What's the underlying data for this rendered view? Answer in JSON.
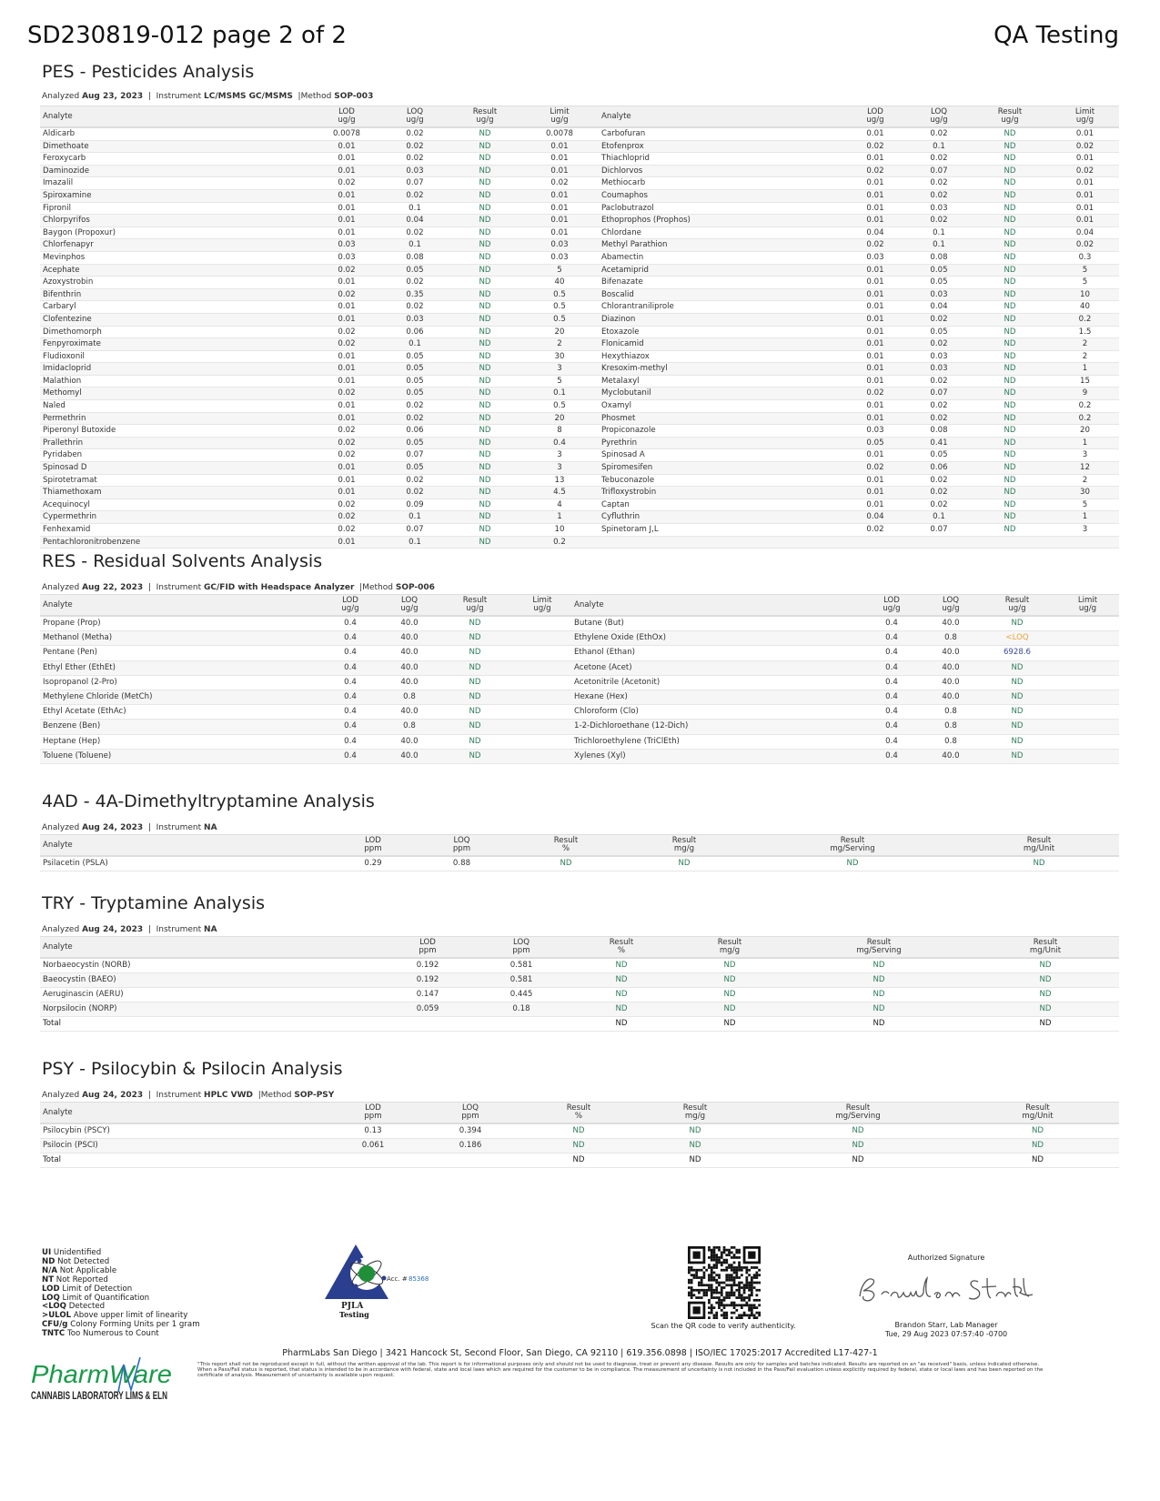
{
  "header": {
    "title": "SD230819-012 page 2 of 2",
    "right": "QA Testing"
  },
  "colors": {
    "nd": "#2e7d5b",
    "loq": "#e8a33a",
    "value": "#3b4a9a",
    "accreditation_blue": "#2a3f8f"
  },
  "pes": {
    "title": "PES - Pesticides Analysis",
    "analyzed_label": "Analyzed",
    "date": "Aug 23, 2023",
    "instrument_label": "Instrument",
    "instrument": "LC/MSMS GC/MSMS",
    "method_label": "Method",
    "method": "SOP-003",
    "headers": [
      "Analyte",
      "LOD\nug/g",
      "LOQ\nug/g",
      "Result\nug/g",
      "Limit\nug/g",
      "Analyte",
      "LOD\nug/g",
      "LOQ\nug/g",
      "Result\nug/g",
      "Limit\nug/g"
    ],
    "rows": [
      [
        "Aldicarb",
        "0.0078",
        "0.02",
        "ND",
        "0.0078",
        "Carbofuran",
        "0.01",
        "0.02",
        "ND",
        "0.01"
      ],
      [
        "Dimethoate",
        "0.01",
        "0.02",
        "ND",
        "0.01",
        "Etofenprox",
        "0.02",
        "0.1",
        "ND",
        "0.02"
      ],
      [
        "Feroxycarb",
        "0.01",
        "0.02",
        "ND",
        "0.01",
        "Thiachloprid",
        "0.01",
        "0.02",
        "ND",
        "0.01"
      ],
      [
        "Daminozide",
        "0.01",
        "0.03",
        "ND",
        "0.01",
        "Dichlorvos",
        "0.02",
        "0.07",
        "ND",
        "0.02"
      ],
      [
        "Imazalil",
        "0.02",
        "0.07",
        "ND",
        "0.02",
        "Methiocarb",
        "0.01",
        "0.02",
        "ND",
        "0.01"
      ],
      [
        "Spiroxamine",
        "0.01",
        "0.02",
        "ND",
        "0.01",
        "Coumaphos",
        "0.01",
        "0.02",
        "ND",
        "0.01"
      ],
      [
        "Fipronil",
        "0.01",
        "0.1",
        "ND",
        "0.01",
        "Paclobutrazol",
        "0.01",
        "0.03",
        "ND",
        "0.01"
      ],
      [
        "Chlorpyrifos",
        "0.01",
        "0.04",
        "ND",
        "0.01",
        "Ethoprophos (Prophos)",
        "0.01",
        "0.02",
        "ND",
        "0.01"
      ],
      [
        "Baygon (Propoxur)",
        "0.01",
        "0.02",
        "ND",
        "0.01",
        "Chlordane",
        "0.04",
        "0.1",
        "ND",
        "0.04"
      ],
      [
        "Chlorfenapyr",
        "0.03",
        "0.1",
        "ND",
        "0.03",
        "Methyl Parathion",
        "0.02",
        "0.1",
        "ND",
        "0.02"
      ],
      [
        "Mevinphos",
        "0.03",
        "0.08",
        "ND",
        "0.03",
        "Abamectin",
        "0.03",
        "0.08",
        "ND",
        "0.3"
      ],
      [
        "Acephate",
        "0.02",
        "0.05",
        "ND",
        "5",
        "Acetamiprid",
        "0.01",
        "0.05",
        "ND",
        "5"
      ],
      [
        "Azoxystrobin",
        "0.01",
        "0.02",
        "ND",
        "40",
        "Bifenazate",
        "0.01",
        "0.05",
        "ND",
        "5"
      ],
      [
        "Bifenthrin",
        "0.02",
        "0.35",
        "ND",
        "0.5",
        "Boscalid",
        "0.01",
        "0.03",
        "ND",
        "10"
      ],
      [
        "Carbaryl",
        "0.01",
        "0.02",
        "ND",
        "0.5",
        "Chlorantraniliprole",
        "0.01",
        "0.04",
        "ND",
        "40"
      ],
      [
        "Clofentezine",
        "0.01",
        "0.03",
        "ND",
        "0.5",
        "Diazinon",
        "0.01",
        "0.02",
        "ND",
        "0.2"
      ],
      [
        "Dimethomorph",
        "0.02",
        "0.06",
        "ND",
        "20",
        "Etoxazole",
        "0.01",
        "0.05",
        "ND",
        "1.5"
      ],
      [
        "Fenpyroximate",
        "0.02",
        "0.1",
        "ND",
        "2",
        "Flonicamid",
        "0.01",
        "0.02",
        "ND",
        "2"
      ],
      [
        "Fludioxonil",
        "0.01",
        "0.05",
        "ND",
        "30",
        "Hexythiazox",
        "0.01",
        "0.03",
        "ND",
        "2"
      ],
      [
        "Imidacloprid",
        "0.01",
        "0.05",
        "ND",
        "3",
        "Kresoxim-methyl",
        "0.01",
        "0.03",
        "ND",
        "1"
      ],
      [
        "Malathion",
        "0.01",
        "0.05",
        "ND",
        "5",
        "Metalaxyl",
        "0.01",
        "0.02",
        "ND",
        "15"
      ],
      [
        "Methomyl",
        "0.02",
        "0.05",
        "ND",
        "0.1",
        "Myclobutanil",
        "0.02",
        "0.07",
        "ND",
        "9"
      ],
      [
        "Naled",
        "0.01",
        "0.02",
        "ND",
        "0.5",
        "Oxamyl",
        "0.01",
        "0.02",
        "ND",
        "0.2"
      ],
      [
        "Permethrin",
        "0.01",
        "0.02",
        "ND",
        "20",
        "Phosmet",
        "0.01",
        "0.02",
        "ND",
        "0.2"
      ],
      [
        "Piperonyl Butoxide",
        "0.02",
        "0.06",
        "ND",
        "8",
        "Propiconazole",
        "0.03",
        "0.08",
        "ND",
        "20"
      ],
      [
        "Prallethrin",
        "0.02",
        "0.05",
        "ND",
        "0.4",
        "Pyrethrin",
        "0.05",
        "0.41",
        "ND",
        "1"
      ],
      [
        "Pyridaben",
        "0.02",
        "0.07",
        "ND",
        "3",
        "Spinosad A",
        "0.01",
        "0.05",
        "ND",
        "3"
      ],
      [
        "Spinosad D",
        "0.01",
        "0.05",
        "ND",
        "3",
        "Spiromesifen",
        "0.02",
        "0.06",
        "ND",
        "12"
      ],
      [
        "Spirotetramat",
        "0.01",
        "0.02",
        "ND",
        "13",
        "Tebuconazole",
        "0.01",
        "0.02",
        "ND",
        "2"
      ],
      [
        "Thiamethoxam",
        "0.01",
        "0.02",
        "ND",
        "4.5",
        "Trifloxystrobin",
        "0.01",
        "0.02",
        "ND",
        "30"
      ],
      [
        "Acequinocyl",
        "0.02",
        "0.09",
        "ND",
        "4",
        "Captan",
        "0.01",
        "0.02",
        "ND",
        "5"
      ],
      [
        "Cypermethrin",
        "0.02",
        "0.1",
        "ND",
        "1",
        "Cyfluthrin",
        "0.04",
        "0.1",
        "ND",
        "1"
      ],
      [
        "Fenhexamid",
        "0.02",
        "0.07",
        "ND",
        "10",
        "Spinetoram J,L",
        "0.02",
        "0.07",
        "ND",
        "3"
      ],
      [
        "Pentachloronitrobenzene",
        "0.01",
        "0.1",
        "ND",
        "0.2",
        "",
        "",
        "",
        "",
        ""
      ]
    ]
  },
  "res": {
    "title": "RES - Residual Solvents Analysis",
    "analyzed_label": "Analyzed",
    "date": "Aug 22, 2023",
    "instrument_label": "Instrument",
    "instrument": "GC/FID with Headspace Analyzer",
    "method_label": "Method",
    "method": "SOP-006",
    "headers": [
      "Analyte",
      "LOD\nug/g",
      "LOQ\nug/g",
      "Result\nug/g",
      "Limit\nug/g",
      "Analyte",
      "LOD\nug/g",
      "LOQ\nug/g",
      "Result\nug/g",
      "Limit\nug/g"
    ],
    "rows": [
      [
        "Propane (Prop)",
        "0.4",
        "40.0",
        "ND",
        "",
        "Butane (But)",
        "0.4",
        "40.0",
        "ND",
        ""
      ],
      [
        "Methanol (Metha)",
        "0.4",
        "40.0",
        "ND",
        "",
        "Ethylene Oxide (EthOx)",
        "0.4",
        "0.8",
        "<LOQ",
        ""
      ],
      [
        "Pentane (Pen)",
        "0.4",
        "40.0",
        "ND",
        "",
        "Ethanol (Ethan)",
        "0.4",
        "40.0",
        "6928.6",
        ""
      ],
      [
        "Ethyl Ether (EthEt)",
        "0.4",
        "40.0",
        "ND",
        "",
        "Acetone (Acet)",
        "0.4",
        "40.0",
        "ND",
        ""
      ],
      [
        "Isopropanol (2-Pro)",
        "0.4",
        "40.0",
        "ND",
        "",
        "Acetonitrile (Acetonit)",
        "0.4",
        "40.0",
        "ND",
        ""
      ],
      [
        "Methylene Chloride (MetCh)",
        "0.4",
        "0.8",
        "ND",
        "",
        "Hexane (Hex)",
        "0.4",
        "40.0",
        "ND",
        ""
      ],
      [
        "Ethyl Acetate (EthAc)",
        "0.4",
        "40.0",
        "ND",
        "",
        "Chloroform (Clo)",
        "0.4",
        "0.8",
        "ND",
        ""
      ],
      [
        "Benzene (Ben)",
        "0.4",
        "0.8",
        "ND",
        "",
        "1-2-Dichloroethane (12-Dich)",
        "0.4",
        "0.8",
        "ND",
        ""
      ],
      [
        "Heptane (Hep)",
        "0.4",
        "40.0",
        "ND",
        "",
        "Trichloroethylene (TriClEth)",
        "0.4",
        "0.8",
        "ND",
        ""
      ],
      [
        "Toluene (Toluene)",
        "0.4",
        "40.0",
        "ND",
        "",
        "Xylenes (Xyl)",
        "0.4",
        "40.0",
        "ND",
        ""
      ]
    ]
  },
  "fourad": {
    "title": "4AD - 4A-Dimethyltryptamine Analysis",
    "analyzed_label": "Analyzed",
    "date": "Aug 24, 2023",
    "instrument_label": "Instrument",
    "instrument": "NA",
    "headers": [
      "Analyte",
      "LOD\nppm",
      "LOQ\nppm",
      "Result\n%",
      "Result\nmg/g",
      "Result\nmg/Serving",
      "Result\nmg/Unit"
    ],
    "rows": [
      [
        "Psilacetin (PSLA)",
        "0.29",
        "0.88",
        "ND",
        "ND",
        "ND",
        "ND"
      ]
    ]
  },
  "try": {
    "title": "TRY - Tryptamine Analysis",
    "analyzed_label": "Analyzed",
    "date": "Aug 24, 2023",
    "instrument_label": "Instrument",
    "instrument": "NA",
    "headers": [
      "Analyte",
      "LOD\nppm",
      "LOQ\nppm",
      "Result\n%",
      "Result\nmg/g",
      "Result\nmg/Serving",
      "Result\nmg/Unit"
    ],
    "rows": [
      [
        "Norbaeocystin (NORB)",
        "0.192",
        "0.581",
        "ND",
        "ND",
        "ND",
        "ND"
      ],
      [
        "Baeocystin (BAEO)",
        "0.192",
        "0.581",
        "ND",
        "ND",
        "ND",
        "ND"
      ],
      [
        "Aeruginascin (AERU)",
        "0.147",
        "0.445",
        "ND",
        "ND",
        "ND",
        "ND"
      ],
      [
        "Norpsilocin (NORP)",
        "0.059",
        "0.18",
        "ND",
        "ND",
        "ND",
        "ND"
      ]
    ],
    "total": [
      "Total",
      "",
      "",
      "ND",
      "ND",
      "ND",
      "ND"
    ]
  },
  "psy": {
    "title": "PSY - Psilocybin & Psilocin Analysis",
    "analyzed_label": "Analyzed",
    "date": "Aug 24, 2023",
    "instrument_label": "Instrument",
    "instrument": "HPLC VWD",
    "method_label": "Method",
    "method": "SOP-PSY",
    "headers": [
      "Analyte",
      "LOD\nppm",
      "LOQ\nppm",
      "Result\n%",
      "Result\nmg/g",
      "Result\nmg/Serving",
      "Result\nmg/Unit"
    ],
    "rows": [
      [
        "Psilocybin (PSCY)",
        "0.13",
        "0.394",
        "ND",
        "ND",
        "ND",
        "ND"
      ],
      [
        "Psilocin (PSCI)",
        "0.061",
        "0.186",
        "ND",
        "ND",
        "ND",
        "ND"
      ]
    ],
    "total": [
      "Total",
      "",
      "",
      "ND",
      "ND",
      "ND",
      "ND"
    ]
  },
  "legend": [
    {
      "abbr": "UI",
      "text": "Unidentified"
    },
    {
      "abbr": "ND",
      "text": "Not Detected"
    },
    {
      "abbr": "N/A",
      "text": "Not Applicable"
    },
    {
      "abbr": "NT",
      "text": "Not Reported"
    },
    {
      "abbr": "LOD",
      "text": "Limit of Detection"
    },
    {
      "abbr": "LOQ",
      "text": "Limit of Quantification"
    },
    {
      "abbr": "<LOQ",
      "text": "Detected"
    },
    {
      "abbr": ">ULOL",
      "text": "Above upper limit of linearity"
    },
    {
      "abbr": "CFU/g",
      "text": "Colony Forming Units per 1 gram"
    },
    {
      "abbr": "TNTC",
      "text": "Too Numerous to Count"
    }
  ],
  "accreditation": {
    "logo_text": "PJLA",
    "logo_sub": "Testing",
    "acc_label": "Acc. #",
    "acc_number": "85368"
  },
  "qr": {
    "caption": "Scan the QR code to verify authenticity."
  },
  "signature": {
    "label": "Authorized Signature",
    "signature_text": "Brandon Starr",
    "name": "Brandon Starr, Lab Manager",
    "date": "Tue, 29 Aug 2023 07:57:40 -0700"
  },
  "footer": {
    "address": "PharmLabs San Diego | 3421 Hancock St, Second Floor, San Diego, CA 92110 | 619.356.0898 | ISO/IEC 17025:2017 Accredited L17-427-1",
    "disclaimer": "\"This report shall not be reproduced except in full, without the written approval of the lab. This report is for informational purposes only and should not be used to diagnose, treat or prevent any disease. Results are only for samples and batches indicated. Results are reported on an \"as received\" basis, unless indicated otherwise. When a Pass/Fail status is reported, that status is intended to be in accordance with federal, state and local laws which are required for the customer to be in compliance. The measurement of uncertainty is not included in the Pass/Fail evaluation unless explicitly required by federal, state or local laws and has been reported on the certificate of analysis. Measurement of uncertainty is available upon request.",
    "brand": "PharmWare",
    "brand_tagline": "CANNABIS LABORATORY LIMS & ELN"
  }
}
